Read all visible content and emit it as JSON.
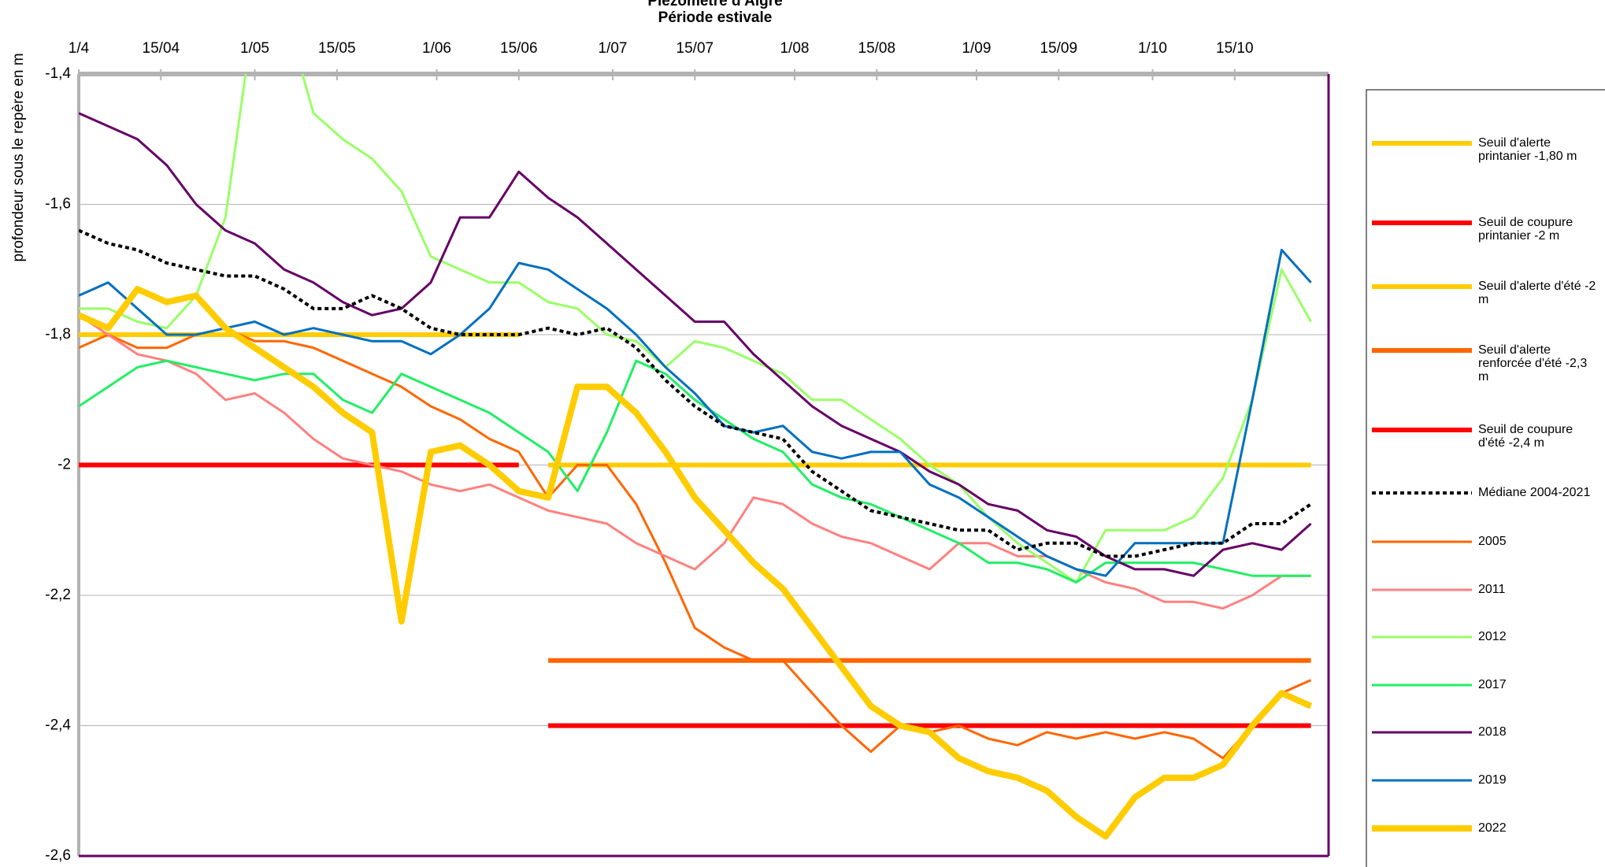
{
  "chart_data": {
    "type": "line",
    "title": "Piézomètre d'Aigre",
    "subtitle": "Période estivale",
    "y_label": "profondeur sous le repère en m",
    "xlim": [
      0,
      213
    ],
    "ylim": [
      -2.6,
      -1.4
    ],
    "xticks": [
      {
        "value": 0,
        "label": "1/4"
      },
      {
        "value": 14,
        "label": "15/04"
      },
      {
        "value": 30,
        "label": "1/05"
      },
      {
        "value": 44,
        "label": "15/05"
      },
      {
        "value": 61,
        "label": "1/06"
      },
      {
        "value": 75,
        "label": "15/06"
      },
      {
        "value": 91,
        "label": "1/07"
      },
      {
        "value": 105,
        "label": "15/07"
      },
      {
        "value": 122,
        "label": "1/08"
      },
      {
        "value": 136,
        "label": "15/08"
      },
      {
        "value": 153,
        "label": "1/09"
      },
      {
        "value": 167,
        "label": "15/09"
      },
      {
        "value": 183,
        "label": "1/10"
      },
      {
        "value": 197,
        "label": "15/10"
      }
    ],
    "yticks": [
      {
        "value": -1.4,
        "label": "-1,4"
      },
      {
        "value": -1.6,
        "label": "-1,6"
      },
      {
        "value": -1.8,
        "label": "-1,8"
      },
      {
        "value": -2,
        "label": "-2"
      },
      {
        "value": -2.2,
        "label": "-2,2"
      },
      {
        "value": -2.4,
        "label": "-2,4"
      },
      {
        "value": -2.6,
        "label": "-2,6"
      }
    ],
    "grid": true,
    "x": [
      0,
      5,
      10,
      15,
      20,
      25,
      30,
      35,
      40,
      45,
      50,
      55,
      60,
      65,
      70,
      75,
      80,
      85,
      90,
      95,
      100,
      105,
      110,
      115,
      120,
      125,
      130,
      135,
      140,
      145,
      150,
      155,
      160,
      165,
      170,
      175,
      180,
      185,
      190,
      195,
      200,
      205,
      210
    ],
    "series": [
      {
        "name": "Seuil d'alerte printanier -1,80 m",
        "color": "#ffcc00",
        "values": [
          -1.8,
          -1.8,
          -1.8,
          -1.8,
          -1.8,
          -1.8,
          -1.8,
          -1.8,
          -1.8,
          -1.8,
          -1.8,
          -1.8,
          -1.8,
          -1.8,
          -1.8,
          -1.8,
          null,
          null,
          null,
          null,
          null,
          null,
          null,
          null,
          null,
          null,
          null,
          null,
          null,
          null,
          null,
          null,
          null,
          null,
          null,
          null,
          null,
          null,
          null,
          null,
          null,
          null,
          null
        ]
      },
      {
        "name": "Seuil de coupure printanier -2 m",
        "color": "#ff0000",
        "values": [
          -2,
          -2,
          -2,
          -2,
          -2,
          -2,
          -2,
          -2,
          -2,
          -2,
          -2,
          -2,
          -2,
          -2,
          -2,
          -2,
          null,
          null,
          null,
          null,
          null,
          null,
          null,
          null,
          null,
          null,
          null,
          null,
          null,
          null,
          null,
          null,
          null,
          null,
          null,
          null,
          null,
          null,
          null,
          null,
          null,
          null,
          null
        ]
      },
      {
        "name": "Seuil d'alerte d'été -2 m",
        "color": "#ffcc00",
        "values": [
          null,
          null,
          null,
          null,
          null,
          null,
          null,
          null,
          null,
          null,
          null,
          null,
          null,
          null,
          null,
          null,
          -2,
          -2,
          -2,
          -2,
          -2,
          -2,
          -2,
          -2,
          -2,
          -2,
          -2,
          -2,
          -2,
          -2,
          -2,
          -2,
          -2,
          -2,
          -2,
          -2,
          -2,
          -2,
          -2,
          -2,
          -2,
          -2,
          -2
        ]
      },
      {
        "name": "Seuil d'alerte renforcée d'été -2,3 m",
        "color": "#ff6600",
        "values": [
          null,
          null,
          null,
          null,
          null,
          null,
          null,
          null,
          null,
          null,
          null,
          null,
          null,
          null,
          null,
          null,
          -2.3,
          -2.3,
          -2.3,
          -2.3,
          -2.3,
          -2.3,
          -2.3,
          -2.3,
          -2.3,
          -2.3,
          -2.3,
          -2.3,
          -2.3,
          -2.3,
          -2.3,
          -2.3,
          -2.3,
          -2.3,
          -2.3,
          -2.3,
          -2.3,
          -2.3,
          -2.3,
          -2.3,
          -2.3,
          -2.3,
          -2.3
        ]
      },
      {
        "name": "Seuil de coupure d'été -2,4 m",
        "color": "#ff0000",
        "values": [
          null,
          null,
          null,
          null,
          null,
          null,
          null,
          null,
          null,
          null,
          null,
          null,
          null,
          null,
          null,
          null,
          -2.4,
          -2.4,
          -2.4,
          -2.4,
          -2.4,
          -2.4,
          -2.4,
          -2.4,
          -2.4,
          -2.4,
          -2.4,
          -2.4,
          -2.4,
          -2.4,
          -2.4,
          -2.4,
          -2.4,
          -2.4,
          -2.4,
          -2.4,
          -2.4,
          -2.4,
          -2.4,
          -2.4,
          -2.4,
          -2.4,
          -2.4
        ]
      },
      {
        "name": "Médiane 2004-2021",
        "color": "#000000",
        "values": [
          -1.64,
          -1.66,
          -1.67,
          -1.69,
          -1.7,
          -1.71,
          -1.71,
          -1.73,
          -1.76,
          -1.76,
          -1.74,
          -1.76,
          -1.79,
          -1.8,
          -1.8,
          -1.8,
          -1.79,
          -1.8,
          -1.79,
          -1.82,
          -1.87,
          -1.91,
          -1.94,
          -1.95,
          -1.96,
          -2.01,
          -2.04,
          -2.07,
          -2.08,
          -2.09,
          -2.1,
          -2.1,
          -2.13,
          -2.12,
          -2.12,
          -2.14,
          -2.14,
          -2.13,
          -2.12,
          -2.12,
          -2.09,
          -2.09,
          -2.06
        ]
      },
      {
        "name": "2005",
        "color": "#ff6600",
        "values": [
          -1.82,
          -1.8,
          -1.82,
          -1.82,
          -1.8,
          -1.79,
          -1.81,
          -1.81,
          -1.82,
          -1.84,
          -1.86,
          -1.88,
          -1.91,
          -1.93,
          -1.96,
          -1.98,
          -2.05,
          -2,
          -2,
          -2.06,
          -2.15,
          -2.25,
          -2.28,
          -2.3,
          -2.3,
          -2.35,
          -2.4,
          -2.44,
          -2.4,
          -2.41,
          -2.4,
          -2.42,
          -2.43,
          -2.41,
          -2.42,
          -2.41,
          -2.42,
          -2.41,
          -2.42,
          -2.45,
          -2.4,
          -2.35,
          -2.33
        ]
      },
      {
        "name": "2011",
        "color": "#ff8080",
        "values": [
          -1.77,
          -1.8,
          -1.83,
          -1.84,
          -1.86,
          -1.9,
          -1.89,
          -1.92,
          -1.96,
          -1.99,
          -2,
          -2.01,
          -2.03,
          -2.04,
          -2.03,
          -2.05,
          -2.07,
          -2.08,
          -2.09,
          -2.12,
          -2.14,
          -2.16,
          -2.12,
          -2.05,
          -2.06,
          -2.09,
          -2.11,
          -2.12,
          -2.14,
          -2.16,
          -2.12,
          -2.12,
          -2.14,
          -2.14,
          -2.16,
          -2.18,
          -2.19,
          -2.21,
          -2.21,
          -2.22,
          -2.2,
          -2.17,
          -2.17
        ]
      },
      {
        "name": "2012",
        "color": "#99ff66",
        "values": [
          -1.76,
          -1.76,
          -1.78,
          -1.79,
          -1.74,
          -1.62,
          -1.3,
          -1.3,
          -1.46,
          -1.5,
          -1.53,
          -1.58,
          -1.68,
          -1.7,
          -1.72,
          -1.72,
          -1.75,
          -1.76,
          -1.8,
          -1.81,
          -1.85,
          -1.81,
          -1.82,
          -1.84,
          -1.86,
          -1.9,
          -1.9,
          -1.93,
          -1.96,
          -2,
          -2.03,
          -2.08,
          -2.12,
          -2.15,
          -2.18,
          -2.1,
          -2.1,
          -2.1,
          -2.08,
          -2.02,
          -1.9,
          -1.7,
          -1.78
        ]
      },
      {
        "name": "2017",
        "color": "#22ee66",
        "values": [
          -1.91,
          -1.88,
          -1.85,
          -1.84,
          -1.85,
          -1.86,
          -1.87,
          -1.86,
          -1.86,
          -1.9,
          -1.92,
          -1.86,
          -1.88,
          -1.9,
          -1.92,
          -1.95,
          -1.98,
          -2.04,
          -1.95,
          -1.84,
          -1.86,
          -1.9,
          -1.93,
          -1.96,
          -1.98,
          -2.03,
          -2.05,
          -2.06,
          -2.08,
          -2.1,
          -2.12,
          -2.15,
          -2.15,
          -2.16,
          -2.18,
          -2.15,
          -2.15,
          -2.15,
          -2.15,
          -2.16,
          -2.17,
          -2.17,
          -2.17
        ]
      },
      {
        "name": "2018",
        "color": "#660066",
        "values": [
          -1.46,
          -1.48,
          -1.5,
          -1.54,
          -1.6,
          -1.64,
          -1.66,
          -1.7,
          -1.72,
          -1.75,
          -1.77,
          -1.76,
          -1.72,
          -1.62,
          -1.62,
          -1.55,
          -1.59,
          -1.62,
          -1.66,
          -1.7,
          -1.74,
          -1.78,
          -1.78,
          -1.83,
          -1.87,
          -1.91,
          -1.94,
          -1.96,
          -1.98,
          -2.01,
          -2.03,
          -2.06,
          -2.07,
          -2.1,
          -2.11,
          -2.14,
          -2.16,
          -2.16,
          -2.17,
          -2.13,
          -2.12,
          -2.13,
          -2.09
        ]
      },
      {
        "name": "2019",
        "color": "#0070c0",
        "values": [
          -1.74,
          -1.72,
          -1.76,
          -1.8,
          -1.8,
          -1.79,
          -1.78,
          -1.8,
          -1.79,
          -1.8,
          -1.81,
          -1.81,
          -1.83,
          -1.8,
          -1.76,
          -1.69,
          -1.7,
          -1.73,
          -1.76,
          -1.8,
          -1.85,
          -1.89,
          -1.94,
          -1.95,
          -1.94,
          -1.98,
          -1.99,
          -1.98,
          -1.98,
          -2.03,
          -2.05,
          -2.08,
          -2.11,
          -2.14,
          -2.16,
          -2.17,
          -2.12,
          -2.12,
          -2.12,
          -2.12,
          -1.9,
          -1.67,
          -1.72
        ]
      },
      {
        "name": "2022",
        "color": "#ffcc00",
        "values": [
          -1.77,
          -1.79,
          -1.73,
          -1.75,
          -1.74,
          -1.79,
          -1.82,
          -1.85,
          -1.88,
          -1.92,
          -1.95,
          -2.24,
          -1.98,
          -1.97,
          -2,
          -2.04,
          -2.05,
          -1.88,
          -1.88,
          -1.92,
          -1.98,
          -2.05,
          -2.1,
          -2.15,
          -2.19,
          -2.25,
          -2.31,
          -2.37,
          -2.4,
          -2.41,
          -2.45,
          -2.47,
          -2.48,
          -2.5,
          -2.54,
          -2.57,
          -2.51,
          -2.48,
          -2.48,
          -2.46,
          -2.4,
          -2.35,
          -2.37
        ]
      }
    ]
  }
}
